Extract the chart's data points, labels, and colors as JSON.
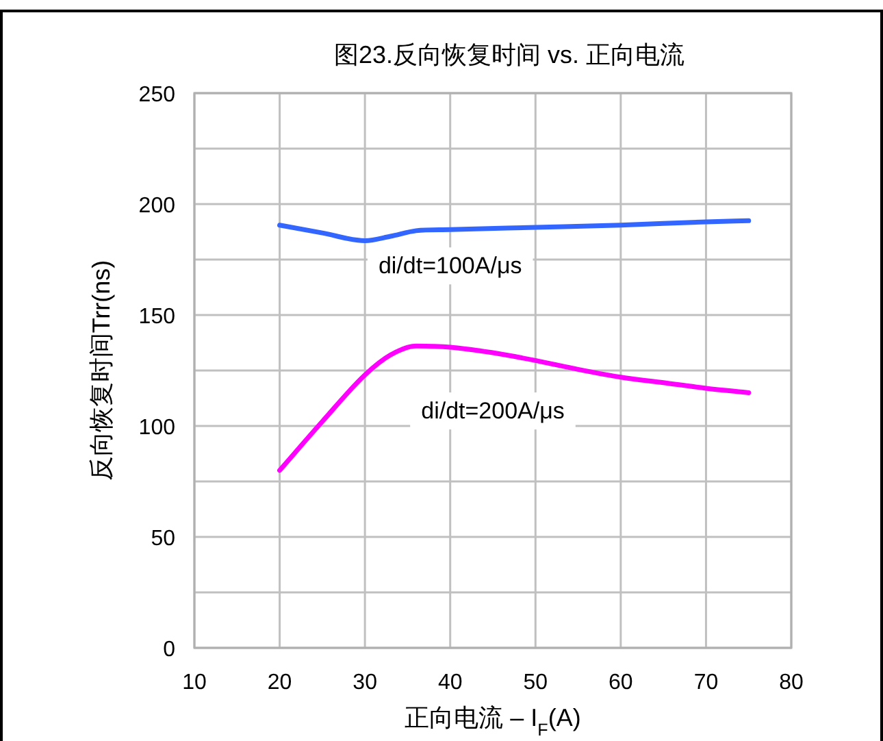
{
  "chart_data": {
    "type": "line",
    "title": "图23.反向恢复时间 vs. 正向电流",
    "xlabel": "正向电流  – I$_{F}$(A)",
    "ylabel": "反向恢复时间Trr(ns)",
    "xlim": [
      10,
      80
    ],
    "xticks": [
      10,
      20,
      30,
      40,
      50,
      60,
      70,
      80
    ],
    "ylim": [
      0,
      250
    ],
    "yticks": [
      0,
      {
        "value": 25,
        "label": null
      },
      50,
      {
        "value": 75,
        "label": null
      },
      100,
      {
        "value": 125,
        "label": null
      },
      150,
      {
        "value": 175,
        "label": null
      },
      200,
      {
        "value": 225,
        "label": null
      },
      250
    ],
    "grid": true,
    "line_style": "solid",
    "marker": "none",
    "series": [
      {
        "name": "di/dt=100A/μs",
        "color": "#3366ff",
        "x": [
          20,
          25,
          30,
          33,
          36,
          40,
          50,
          60,
          70,
          75
        ],
        "values": [
          190.5,
          187,
          183.5,
          185.5,
          188,
          188.5,
          189.5,
          190.5,
          192,
          192.5
        ]
      },
      {
        "name": "di/dt=200A/μs",
        "color": "#ff00ff",
        "x": [
          20,
          25,
          30,
          33,
          36,
          40,
          45,
          50,
          55,
          60,
          65,
          70,
          75
        ],
        "values": [
          80,
          102,
          123,
          132,
          136,
          135.5,
          133,
          129.5,
          125.5,
          122,
          119.5,
          117,
          115
        ]
      }
    ]
  }
}
